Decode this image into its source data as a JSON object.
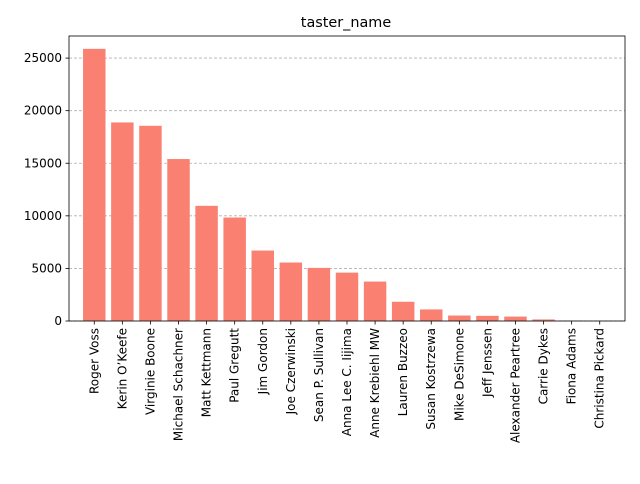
{
  "chart_data": {
    "type": "bar",
    "title": "taster_name",
    "xlabel": "",
    "ylabel": "",
    "ylim": [
      0,
      27100
    ],
    "yticks": [
      0,
      5000,
      10000,
      15000,
      20000,
      25000
    ],
    "grid": {
      "y": true,
      "x": false,
      "style": "dashed"
    },
    "bar_color": "#FA8072",
    "categories": [
      "Roger Voss",
      "Kerin O’Keefe",
      "Virginie Boone",
      "Michael Schachner",
      "Matt Kettmann",
      "Paul Gregutt",
      "Jim Gordon",
      "Joe Czerwinski",
      "Sean P. Sullivan",
      "Anna Lee C. Iijima",
      "Anne Krebiehl MW",
      "Lauren Buzzeo",
      "Susan Kostrzewa",
      "Mike DeSimone",
      "Jeff Jenssen",
      "Alexander Peartree",
      "Carrie Dykes",
      "Fiona Adams",
      "Christina Pickard"
    ],
    "values": [
      25880,
      18880,
      18560,
      15400,
      10950,
      9840,
      6700,
      5560,
      5050,
      4600,
      3750,
      1830,
      1100,
      520,
      490,
      420,
      150,
      30,
      5
    ]
  }
}
